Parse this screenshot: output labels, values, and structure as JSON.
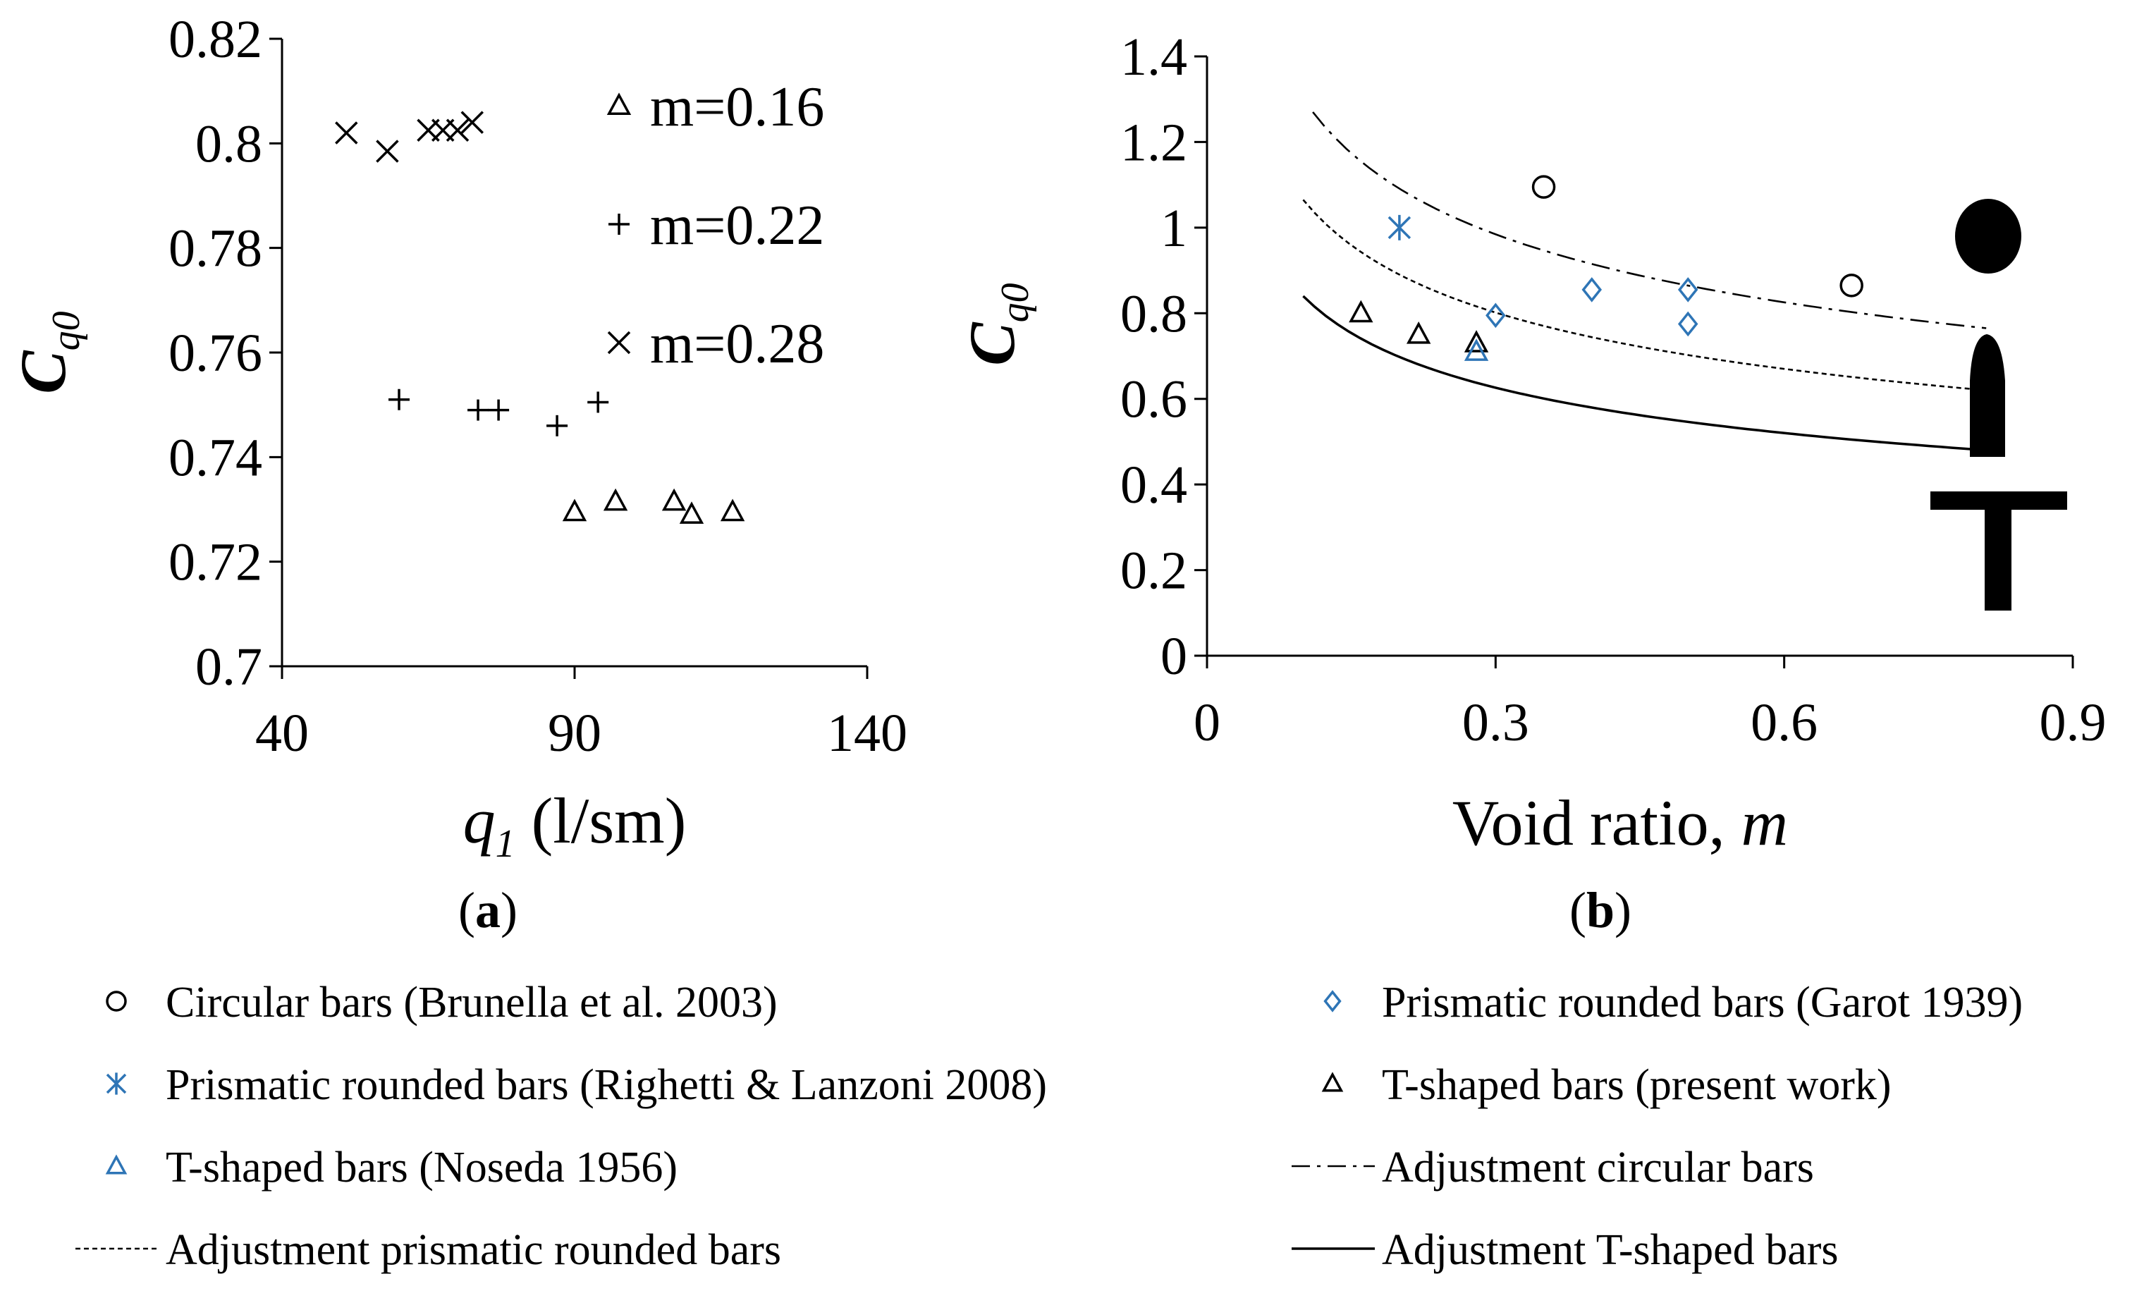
{
  "chart_data": [
    {
      "type": "scatter",
      "panel_label": "a",
      "xlabel": {
        "symbol": "q",
        "subscript": "1",
        "unit": " (l/sm)"
      },
      "ylabel": {
        "symbol": "C",
        "subscript": "q0"
      },
      "xlim": [
        40,
        140
      ],
      "ylim": [
        0.7,
        0.82
      ],
      "xticks": [
        "40",
        "90",
        "140"
      ],
      "yticks": [
        "0.7",
        "0.72",
        "0.74",
        "0.76",
        "0.78",
        "0.8",
        "0.82"
      ],
      "series": [
        {
          "name": "m=0.16",
          "marker": "triangle",
          "x": [
            90,
            97,
            107,
            110,
            117
          ],
          "y": [
            0.7295,
            0.7315,
            0.7315,
            0.729,
            0.7295
          ]
        },
        {
          "name": "m=0.22",
          "marker": "plus",
          "x": [
            60,
            73.5,
            77,
            87,
            94
          ],
          "y": [
            0.751,
            0.749,
            0.749,
            0.746,
            0.7505
          ]
        },
        {
          "name": "m=0.28",
          "marker": "x",
          "x": [
            51,
            58,
            65,
            67.5,
            70,
            72.5
          ],
          "y": [
            0.802,
            0.7985,
            0.8025,
            0.8025,
            0.8025,
            0.804
          ]
        }
      ]
    },
    {
      "type": "scatter",
      "panel_label": "b",
      "xlabel": {
        "text": "Void ratio, ",
        "italic": "m"
      },
      "ylabel": {
        "symbol": "C",
        "subscript": "q0"
      },
      "xlim": [
        0,
        0.9
      ],
      "ylim": [
        0,
        1.4
      ],
      "xticks": [
        "0",
        "0.3",
        "0.6",
        "0.9"
      ],
      "yticks": [
        "0",
        "0.2",
        "0.4",
        "0.6",
        "0.8",
        "1",
        "1.2",
        "1.4"
      ],
      "series": [
        {
          "name": "Circular bars (Brunella et al. 2003)",
          "marker": "circle",
          "color": "#000000",
          "x": [
            0.35,
            0.67
          ],
          "y": [
            1.095,
            0.865
          ]
        },
        {
          "name": "Prismatic rounded bars (Garot 1939)",
          "marker": "diamond",
          "color": "#2e75b6",
          "x": [
            0.3,
            0.4,
            0.5,
            0.5
          ],
          "y": [
            0.795,
            0.855,
            0.855,
            0.775
          ]
        },
        {
          "name": "Prismatic rounded bars (Righetti & Lanzoni 2008)",
          "marker": "asterisk",
          "color": "#2e75b6",
          "x": [
            0.2
          ],
          "y": [
            1.0
          ]
        },
        {
          "name": "T-shaped bars (present work)",
          "marker": "triangle",
          "color": "#000000",
          "x": [
            0.16,
            0.22,
            0.28
          ],
          "y": [
            0.8,
            0.75,
            0.73
          ]
        },
        {
          "name": "T-shaped bars (Noseda 1956)",
          "marker": "triangle",
          "color": "#2e75b6",
          "x": [
            0.28
          ],
          "y": [
            0.71
          ]
        }
      ],
      "lines": [
        {
          "name": "Adjustment circular bars",
          "style": "dashdot",
          "x": [
            0.11,
            0.81
          ],
          "y": [
            1.27,
            0.765
          ]
        },
        {
          "name": "Adjustment prismatic rounded bars",
          "style": "dotted",
          "x": [
            0.1,
            0.81
          ],
          "y": [
            1.065,
            0.62
          ]
        },
        {
          "name": "Adjustment T-shaped bars",
          "style": "solid",
          "x": [
            0.1,
            0.81
          ],
          "y": [
            0.84,
            0.48
          ]
        }
      ]
    }
  ],
  "legend": [
    {
      "marker": "circle",
      "color": "#000000",
      "label": "Circular bars (Brunella et al. 2003)"
    },
    {
      "marker": "diamond",
      "color": "#2e75b6",
      "label": "Prismatic rounded bars (Garot 1939)"
    },
    {
      "marker": "asterisk",
      "color": "#2e75b6",
      "label": "Prismatic rounded bars (Righetti & Lanzoni 2008)"
    },
    {
      "marker": "triangle",
      "color": "#000000",
      "label": "T-shaped bars (present work)"
    },
    {
      "marker": "triangle",
      "color": "#2e75b6",
      "label": "T-shaped bars (Noseda 1956)"
    },
    {
      "marker": "dashdot",
      "color": "#000000",
      "label": "Adjustment circular bars"
    },
    {
      "marker": "dotted",
      "color": "#000000",
      "label": "Adjustment prismatic rounded bars"
    },
    {
      "marker": "solid",
      "color": "#000000",
      "label": "Adjustment T-shaped bars"
    }
  ]
}
